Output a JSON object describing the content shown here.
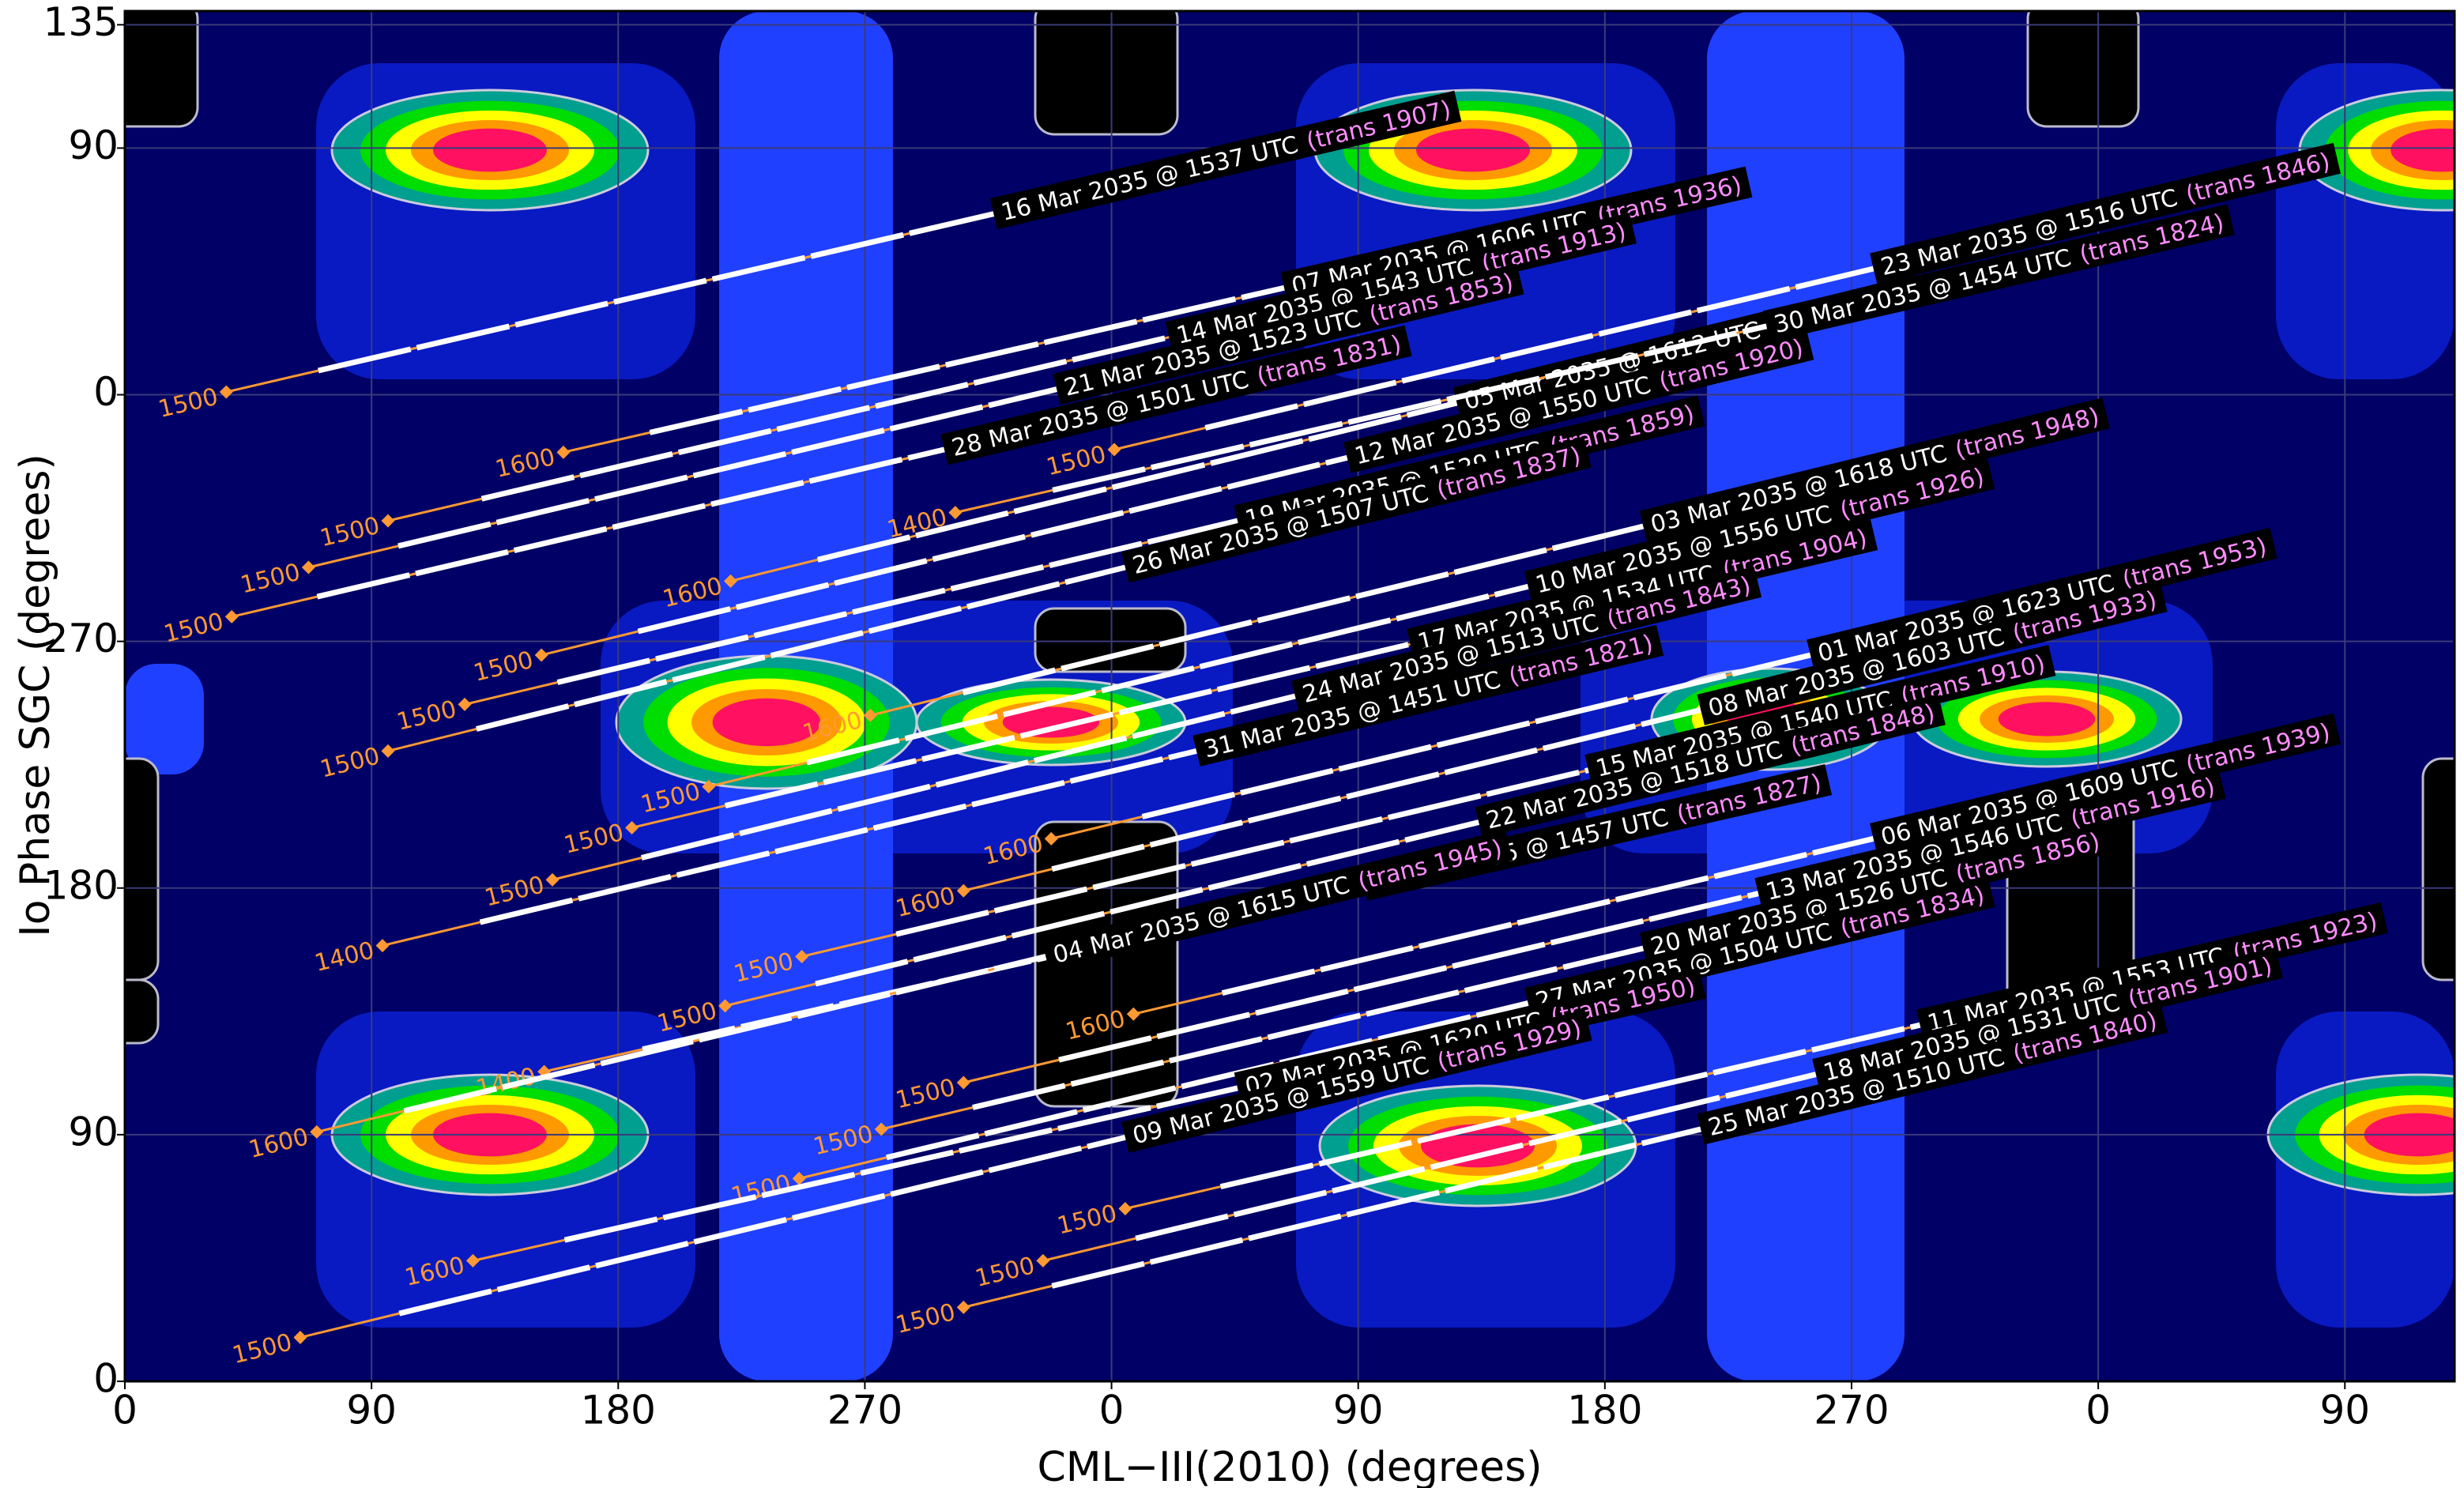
{
  "chart_data": {
    "type": "tracks",
    "x_label": "CML−III(2010) (degrees)",
    "y_label": "Io Phase SGC (degrees)",
    "xlim": [
      0,
      850
    ],
    "ylim": [
      0,
      500
    ],
    "xticks": [
      0,
      90,
      180,
      270,
      {
        "value": 360,
        "label": "0"
      },
      {
        "value": 450,
        "label": "90"
      },
      {
        "value": 540,
        "label": "180"
      },
      {
        "value": 630,
        "label": "270"
      },
      {
        "value": 720,
        "label": "0"
      },
      {
        "value": 810,
        "label": "90"
      }
    ],
    "yticks": [
      0,
      90,
      180,
      270,
      {
        "value": 360,
        "label": "0"
      },
      {
        "value": 450,
        "label": "90"
      },
      {
        "value": 495,
        "label": "135"
      }
    ],
    "grid": true,
    "track_color": "#ffffff",
    "start_color": "#ff9933",
    "trans_color": "#ff8cff",
    "series": [
      {
        "name": "16 Mar 2035 @ 1537 UTC",
        "trans": "(trans 1907)",
        "start_label": "1500",
        "x": [
          37,
          317
        ],
        "y": [
          361,
          426
        ]
      },
      {
        "name": "07 Mar 2035 @ 1606 UTC",
        "trans": "(trans 1936)",
        "start_label": "1600",
        "x": [
          160,
          423
        ],
        "y": [
          339,
          399
        ]
      },
      {
        "name": "14 Mar 2035 @ 1543 UTC",
        "trans": "(trans 1913)",
        "start_label": "1500",
        "x": [
          96,
          381
        ],
        "y": [
          314,
          381
        ]
      },
      {
        "name": "21 Mar 2035 @ 1523 UTC",
        "trans": "(trans 1853)",
        "start_label": "1500",
        "x": [
          67,
          340
        ],
        "y": [
          297,
          362
        ]
      },
      {
        "name": "28 Mar 2035 @ 1501 UTC",
        "trans": "(trans 1831)",
        "start_label": "1500",
        "x": [
          39,
          299
        ],
        "y": [
          279,
          340
        ]
      },
      {
        "name": "05 Mar 2035 @ 1612 UTC",
        "trans": "(trans 1942)",
        "start_label": "1600",
        "x": [
          221,
          486
        ],
        "y": [
          292,
          357
        ]
      },
      {
        "name": "23 Mar 2035 @ 1516 UTC",
        "trans": "(trans 1846)",
        "start_label": "1500",
        "x": [
          361,
          638
        ],
        "y": [
          340,
          406
        ]
      },
      {
        "name": "30 Mar 2035 @ 1454 UTC",
        "trans": "(trans 1824)",
        "start_label": "1400",
        "x": [
          303,
          599
        ],
        "y": [
          317,
          385
        ]
      },
      {
        "name": "12 Mar 2035 @ 1550 UTC",
        "trans": "(trans 1920)",
        "start_label": "1500",
        "x": [
          152,
          446
        ],
        "y": [
          265,
          337
        ]
      },
      {
        "name": "19 Mar 2035 @ 1529 UTC",
        "trans": "(trans 1859)",
        "start_label": "1500",
        "x": [
          124,
          406
        ],
        "y": [
          247,
          314
        ]
      },
      {
        "name": "26 Mar 2035 @ 1507 UTC",
        "trans": "(trans 1837)",
        "start_label": "1500",
        "x": [
          96,
          365
        ],
        "y": [
          230,
          297
        ]
      },
      {
        "name": "03 Mar 2035 @ 1618 UTC",
        "trans": "(trans 1948)",
        "start_label": "1600",
        "x": [
          272,
          554
        ],
        "y": [
          243,
          312
        ]
      },
      {
        "name": "10 Mar 2035 @ 1556 UTC",
        "trans": "(trans 1926)",
        "start_label": "1500",
        "x": [
          213,
          512
        ],
        "y": [
          217,
          290
        ]
      },
      {
        "name": "17 Mar 2035 @ 1534 UTC",
        "trans": "(trans 1904)",
        "start_label": "1500",
        "x": [
          185,
          469
        ],
        "y": [
          202,
          269
        ]
      },
      {
        "name": "24 Mar 2035 @ 1513 UTC",
        "trans": "(trans 1843)",
        "start_label": "1500",
        "x": [
          156,
          427
        ],
        "y": [
          183,
          250
        ]
      },
      {
        "name": "31 Mar 2035 @ 1451 UTC",
        "trans": "(trans 1821)",
        "start_label": "1400",
        "x": [
          94,
          391
        ],
        "y": [
          159,
          230
        ]
      },
      {
        "name": "01 Mar 2035 @ 1623 UTC",
        "trans": "(trans 1953)",
        "start_label": "1600",
        "x": [
          338,
          615
        ],
        "y": [
          198,
          265
        ]
      },
      {
        "name": "08 Mar 2035 @ 1603 UTC",
        "trans": "(trans 1933)",
        "start_label": "1600",
        "x": [
          306,
          575
        ],
        "y": [
          179,
          245
        ]
      },
      {
        "name": "15 Mar 2035 @ 1540 UTC",
        "trans": "(trans 1910)",
        "start_label": "1500",
        "x": [
          247,
          534
        ],
        "y": [
          155,
          223
        ]
      },
      {
        "name": "22 Mar 2035 @ 1518 UTC",
        "trans": "(trans 1848)",
        "start_label": "1500",
        "x": [
          219,
          494
        ],
        "y": [
          137,
          204
        ]
      },
      {
        "name": "29 Mar 2035 @ 1457 UTC",
        "trans": "(trans 1827)",
        "start_label": "1400",
        "x": [
          153,
          452
        ],
        "y": [
          113,
          181
        ]
      },
      {
        "name": "06 Mar 2035 @ 1609 UTC",
        "trans": "(trans 1939)",
        "start_label": "1600",
        "x": [
          368,
          638
        ],
        "y": [
          134,
          198
        ]
      },
      {
        "name": "13 Mar 2035 @ 1546 UTC",
        "trans": "(trans 1916)",
        "start_label": "1500",
        "x": [
          306,
          596
        ],
        "y": [
          109,
          178
        ]
      },
      {
        "name": "20 Mar 2035 @ 1526 UTC",
        "trans": "(trans 1856)",
        "start_label": "1500",
        "x": [
          276,
          554
        ],
        "y": [
          92,
          158
        ]
      },
      {
        "name": "27 Mar 2035 @ 1504 UTC",
        "trans": "(trans 1834)",
        "start_label": "1500",
        "x": [
          246,
          512
        ],
        "y": [
          74,
          138
        ]
      },
      {
        "name": "04 Mar 2035 @ 1615 UTC",
        "trans": "(trans 1945)",
        "start_label": "1600",
        "x": [
          70,
          336
        ],
        "y": [
          91,
          155
        ]
      },
      {
        "name": "02 Mar 2035 @ 1620 UTC",
        "trans": "(trans 1950)",
        "start_label": "1600",
        "x": [
          127,
          406
        ],
        "y": [
          44,
          107
        ]
      },
      {
        "name": "09 Mar 2035 @ 1559 UTC",
        "trans": "(trans 1929)",
        "start_label": "1500",
        "x": [
          64,
          365
        ],
        "y": [
          16,
          89
        ]
      },
      {
        "name": "11 Mar 2035 @ 1553 UTC",
        "trans": "(trans 1923)",
        "start_label": "1500",
        "x": [
          365,
          655
        ],
        "y": [
          63,
          130
        ]
      },
      {
        "name": "18 Mar 2035 @ 1531 UTC",
        "trans": "(trans 1901)",
        "start_label": "1500",
        "x": [
          335,
          617
        ],
        "y": [
          44,
          112
        ]
      },
      {
        "name": "25 Mar 2035 @ 1510 UTC",
        "trans": "(trans 1840)",
        "start_label": "1500",
        "x": [
          306,
          575
        ],
        "y": [
          27,
          92
        ]
      }
    ]
  }
}
